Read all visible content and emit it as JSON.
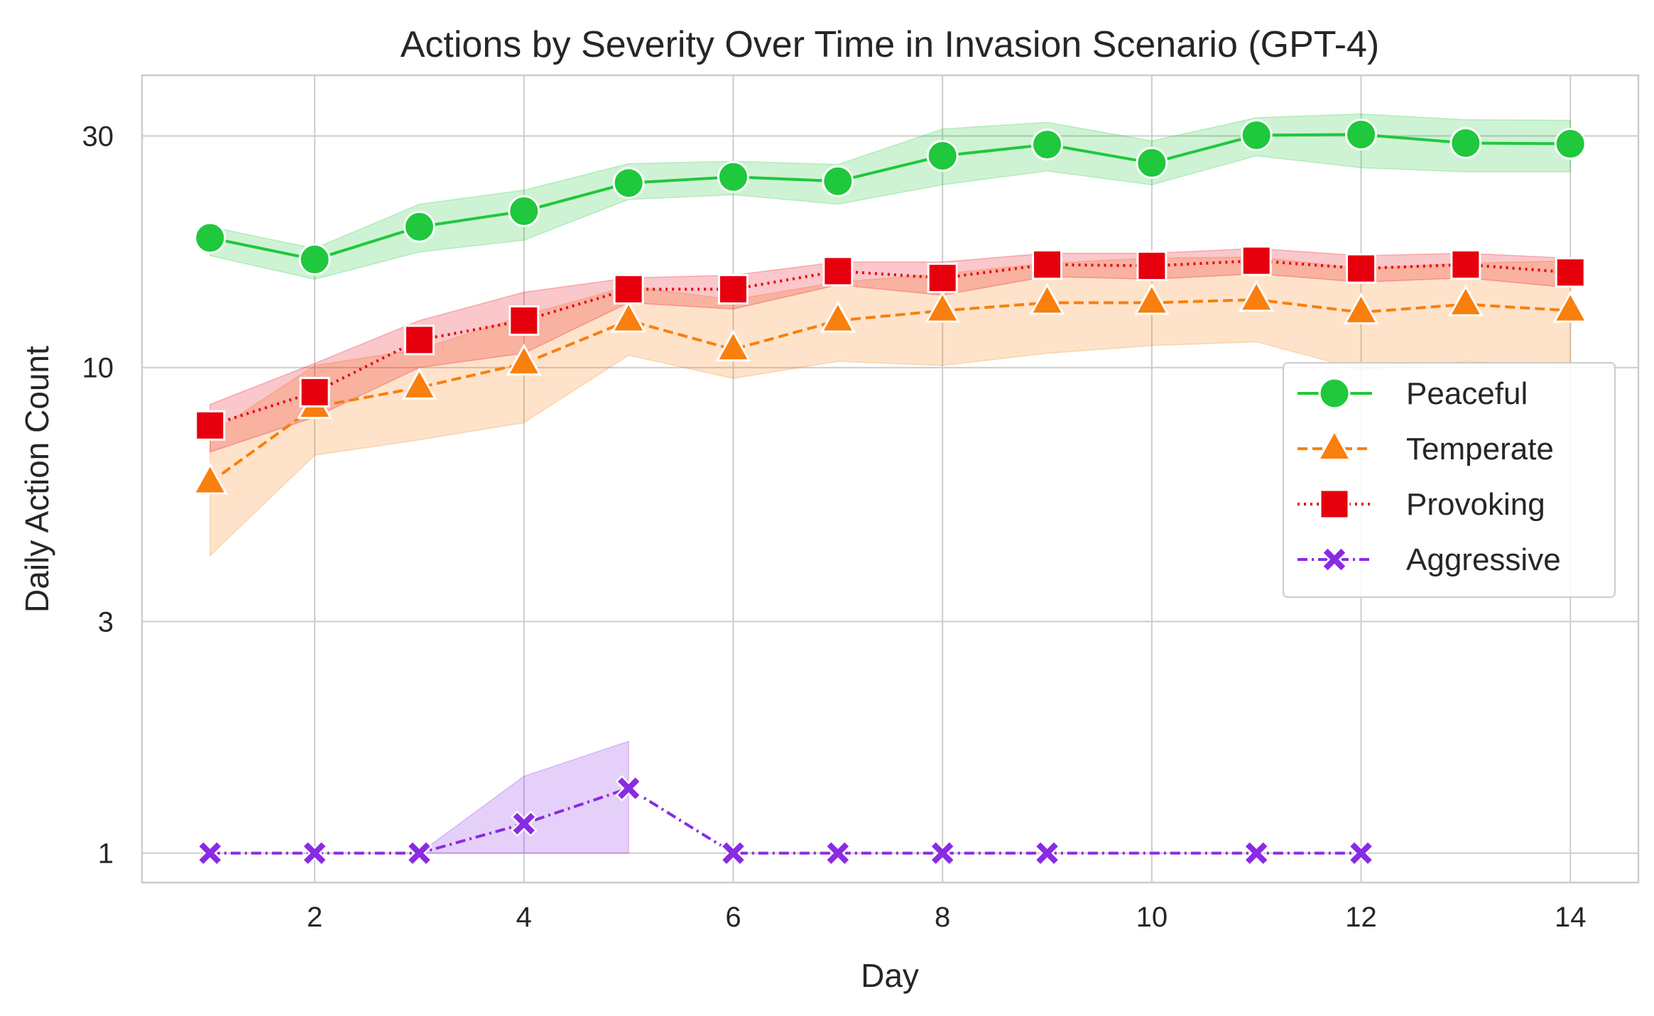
{
  "chart_data": {
    "type": "line",
    "title": "Actions by Severity Over Time in Invasion Scenario (GPT-4)",
    "xlabel": "Day",
    "ylabel": "Daily Action Count",
    "yscale": "log",
    "xlim": [
      0.35,
      14.65
    ],
    "ylim": [
      0.87,
      40
    ],
    "xticks": [
      2,
      4,
      6,
      8,
      10,
      12,
      14
    ],
    "xtick_labels": [
      "2",
      "4",
      "6",
      "8",
      "10",
      "12",
      "14"
    ],
    "yticks": [
      1,
      3,
      10,
      30
    ],
    "ytick_labels": [
      "1",
      "3",
      "10",
      "30"
    ],
    "grid": true,
    "legend_position": "right",
    "series": [
      {
        "name": "Peaceful",
        "color": "#1fc83c",
        "marker": "circle",
        "line_style": "solid",
        "x": [
          1,
          2,
          3,
          4,
          5,
          6,
          7,
          8,
          9,
          10,
          11,
          12,
          13,
          14
        ],
        "values": [
          18.5,
          16.7,
          19.5,
          21.0,
          24.0,
          24.7,
          24.2,
          27.3,
          28.8,
          26.4,
          30.1,
          30.2,
          29.0,
          28.9
        ],
        "ci_low": [
          17.0,
          15.2,
          17.3,
          18.3,
          22.2,
          22.7,
          21.7,
          23.8,
          25.4,
          23.8,
          27.3,
          25.8,
          25.3,
          25.3
        ],
        "ci_high": [
          19.5,
          17.6,
          21.7,
          23.2,
          26.3,
          26.6,
          26.2,
          31.0,
          32.0,
          29.3,
          32.7,
          33.3,
          32.4,
          32.3
        ]
      },
      {
        "name": "Temperate",
        "color": "#f97f0e",
        "marker": "triangle",
        "line_style": "dashed",
        "x": [
          1,
          2,
          3,
          4,
          5,
          6,
          7,
          8,
          9,
          10,
          11,
          12,
          13,
          14
        ],
        "values": [
          5.8,
          8.3,
          9.1,
          10.2,
          12.5,
          10.9,
          12.5,
          13.1,
          13.6,
          13.6,
          13.8,
          13.0,
          13.5,
          13.1
        ],
        "ci_low": [
          4.1,
          6.6,
          7.1,
          7.7,
          10.6,
          9.5,
          10.3,
          10.1,
          10.7,
          11.1,
          11.3,
          9.9,
          10.3,
          10.1
        ],
        "ci_high": [
          7.3,
          10.1,
          10.9,
          12.8,
          14.7,
          13.8,
          15.0,
          15.6,
          16.4,
          16.8,
          16.9,
          16.0,
          16.4,
          16.6
        ]
      },
      {
        "name": "Provoking",
        "color": "#e6000e",
        "marker": "square",
        "line_style": "dotted",
        "x": [
          1,
          2,
          3,
          4,
          5,
          6,
          7,
          8,
          9,
          10,
          11,
          12,
          13,
          14
        ],
        "values": [
          7.6,
          8.9,
          11.4,
          12.5,
          14.5,
          14.5,
          15.8,
          15.3,
          16.3,
          16.2,
          16.6,
          16.0,
          16.3,
          15.7
        ],
        "ci_low": [
          6.7,
          7.9,
          10.0,
          10.7,
          13.6,
          13.2,
          14.8,
          14.1,
          15.4,
          15.2,
          15.6,
          15.0,
          15.3,
          14.6
        ],
        "ci_high": [
          8.4,
          10.2,
          12.5,
          14.3,
          15.3,
          15.5,
          16.5,
          16.5,
          17.2,
          17.2,
          17.6,
          17.0,
          17.2,
          16.8
        ]
      },
      {
        "name": "Aggressive",
        "color": "#8a2be2",
        "marker": "x",
        "line_style": "dashdot",
        "x": [
          1,
          2,
          3,
          4,
          5,
          6,
          7,
          8,
          9,
          11,
          12
        ],
        "values": [
          1.0,
          1.0,
          1.0,
          1.15,
          1.36,
          1.0,
          1.0,
          1.0,
          1.0,
          1.0,
          1.0
        ],
        "ci_x": [
          3,
          4,
          5
        ],
        "ci_low": [
          1.0,
          1.0,
          1.0
        ],
        "ci_high": [
          1.0,
          1.44,
          1.7
        ]
      }
    ]
  }
}
